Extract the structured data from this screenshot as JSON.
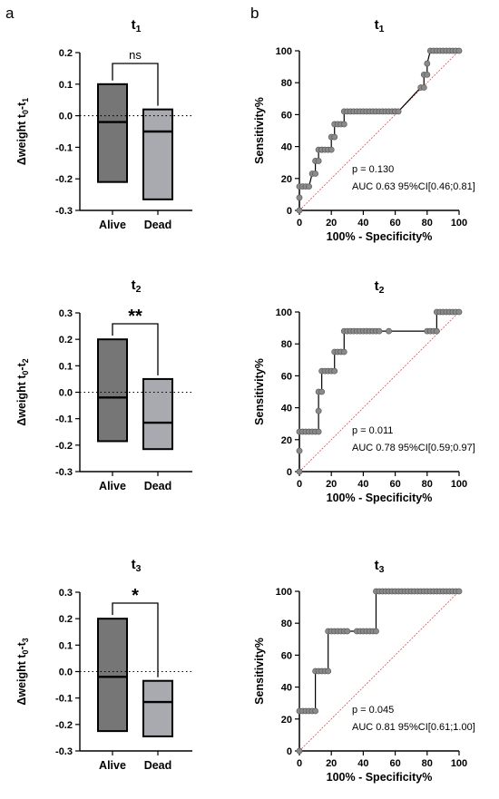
{
  "panel_labels": [
    "a",
    "b"
  ],
  "chart_data": [
    {
      "id": "box-t1",
      "type": "bar",
      "subtype": "floating-bar",
      "title": "t",
      "title_sub": "1",
      "ylabel": "Δweight t",
      "ylabel_sub0": "0",
      "ylabel_dash": "-t",
      "ylabel_sub1": "1",
      "ylim": [
        -0.3,
        0.2
      ],
      "yticks": [
        "0.2",
        "0.1",
        "0.0",
        "-0.1",
        "-0.2",
        "-0.3"
      ],
      "ytick_values": [
        0.2,
        0.1,
        0.0,
        -0.1,
        -0.2,
        -0.3
      ],
      "categories": [
        "Alive",
        "Dead"
      ],
      "min": [
        -0.21,
        -0.265
      ],
      "max": [
        0.1,
        0.02
      ],
      "median": [
        -0.02,
        -0.05
      ],
      "fills": [
        "#767676",
        "#a9a9b0"
      ],
      "reference_line": 0,
      "significance": "ns",
      "sig_style": "normal"
    },
    {
      "id": "box-t2",
      "type": "bar",
      "subtype": "floating-bar",
      "title": "t",
      "title_sub": "2",
      "ylabel": "Δweight t",
      "ylabel_sub0": "0",
      "ylabel_dash": "-t",
      "ylabel_sub1": "2",
      "ylim": [
        -0.3,
        0.3
      ],
      "yticks": [
        "0.3",
        "0.2",
        "0.1",
        "0.0",
        "-0.1",
        "-0.2",
        "-0.3"
      ],
      "ytick_values": [
        0.3,
        0.2,
        0.1,
        0.0,
        -0.1,
        -0.2,
        -0.3
      ],
      "categories": [
        "Alive",
        "Dead"
      ],
      "min": [
        -0.185,
        -0.215
      ],
      "max": [
        0.2,
        0.05
      ],
      "median": [
        -0.02,
        -0.115
      ],
      "fills": [
        "#767676",
        "#a9a9b0"
      ],
      "reference_line": 0,
      "significance": "**",
      "sig_style": "bold"
    },
    {
      "id": "box-t3",
      "type": "bar",
      "subtype": "floating-bar",
      "title": "t",
      "title_sub": "3",
      "ylabel": "Δweight t",
      "ylabel_sub0": "0",
      "ylabel_dash": "-t",
      "ylabel_sub1": "3",
      "ylim": [
        -0.3,
        0.3
      ],
      "yticks": [
        "0.3",
        "0.2",
        "0.1",
        "0.0",
        "-0.1",
        "-0.2",
        "-0.3"
      ],
      "ytick_values": [
        0.3,
        0.2,
        0.1,
        0.0,
        -0.1,
        -0.2,
        -0.3
      ],
      "categories": [
        "Alive",
        "Dead"
      ],
      "min": [
        -0.225,
        -0.245
      ],
      "max": [
        0.2,
        -0.035
      ],
      "median": [
        -0.02,
        -0.115
      ],
      "fills": [
        "#767676",
        "#a9a9b0"
      ],
      "reference_line": 0,
      "significance": "*",
      "sig_style": "bold"
    },
    {
      "id": "roc-t1",
      "type": "line",
      "title": "t",
      "title_sub": "1",
      "xlabel": "100% - Specificity%",
      "ylabel": "Sensitivity%",
      "xlim": [
        0,
        100
      ],
      "ylim": [
        0,
        100
      ],
      "xticks": [
        "0",
        "20",
        "40",
        "60",
        "80",
        "100"
      ],
      "yticks": [
        "0",
        "20",
        "40",
        "60",
        "80",
        "100"
      ],
      "diagonal_color": "#e06060",
      "p_text": "p = 0.130",
      "auc_text": "AUC 0.63 95%CI[0.46;0.81]",
      "x": [
        0,
        0,
        0,
        2,
        4,
        6,
        8,
        10,
        10,
        12,
        12,
        14,
        14,
        16,
        18,
        20,
        20,
        22,
        22,
        24,
        26,
        28,
        28,
        30,
        32,
        34,
        36,
        38,
        40,
        42,
        44,
        46,
        48,
        50,
        52,
        54,
        56,
        58,
        60,
        60,
        62,
        76,
        78,
        78,
        80,
        80,
        82,
        84,
        86,
        88,
        90,
        92,
        94,
        96,
        98,
        100
      ],
      "y": [
        0,
        8,
        15,
        15,
        15,
        15,
        23,
        23,
        31,
        31,
        38,
        38,
        38,
        38,
        38,
        38,
        46,
        46,
        54,
        54,
        54,
        54,
        62,
        62,
        62,
        62,
        62,
        62,
        62,
        62,
        62,
        62,
        62,
        62,
        62,
        62,
        62,
        62,
        62,
        62,
        62,
        77,
        77,
        85,
        85,
        92,
        100,
        100,
        100,
        100,
        100,
        100,
        100,
        100,
        100,
        100
      ]
    },
    {
      "id": "roc-t2",
      "type": "line",
      "title": "t",
      "title_sub": "2",
      "xlabel": "100% - Specificity%",
      "ylabel": "Sensitivity%",
      "xlim": [
        0,
        100
      ],
      "ylim": [
        0,
        100
      ],
      "xticks": [
        "0",
        "20",
        "40",
        "60",
        "80",
        "100"
      ],
      "yticks": [
        "0",
        "20",
        "40",
        "60",
        "80",
        "100"
      ],
      "diagonal_color": "#e06060",
      "p_text": "p  = 0.011",
      "auc_text": "AUC 0.78 95%CI[0.59;0.97]",
      "x": [
        0,
        0,
        0,
        2,
        4,
        6,
        8,
        10,
        12,
        12,
        12,
        14,
        14,
        16,
        18,
        20,
        22,
        22,
        24,
        26,
        28,
        28,
        30,
        32,
        34,
        36,
        38,
        40,
        42,
        44,
        46,
        48,
        50,
        56,
        80,
        82,
        84,
        86,
        86,
        88,
        90,
        92,
        94,
        96,
        98,
        100
      ],
      "y": [
        0,
        13,
        25,
        25,
        25,
        25,
        25,
        25,
        25,
        38,
        50,
        50,
        63,
        63,
        63,
        63,
        63,
        75,
        75,
        75,
        75,
        88,
        88,
        88,
        88,
        88,
        88,
        88,
        88,
        88,
        88,
        88,
        88,
        88,
        88,
        88,
        88,
        88,
        100,
        100,
        100,
        100,
        100,
        100,
        100,
        100
      ]
    },
    {
      "id": "roc-t3",
      "type": "line",
      "title": "t",
      "title_sub": "3",
      "xlabel": "100% - Specificity%",
      "ylabel": "Sensitivity%",
      "xlim": [
        0,
        100
      ],
      "ylim": [
        0,
        100
      ],
      "xticks": [
        "0",
        "20",
        "40",
        "60",
        "80",
        "100"
      ],
      "yticks": [
        "0",
        "20",
        "40",
        "60",
        "80",
        "100"
      ],
      "diagonal_color": "#e06060",
      "p_text": "p = 0.045",
      "auc_text": "AUC 0.81 95%CI[0.61;1.00]",
      "x": [
        0,
        0,
        2,
        4,
        6,
        8,
        10,
        10,
        12,
        14,
        16,
        18,
        18,
        20,
        22,
        24,
        26,
        28,
        30,
        36,
        38,
        40,
        42,
        44,
        46,
        48,
        48,
        50,
        52,
        54,
        56,
        58,
        60,
        62,
        64,
        66,
        68,
        70,
        72,
        74,
        76,
        78,
        80,
        82,
        84,
        86,
        88,
        90,
        92,
        94,
        96,
        98,
        100
      ],
      "y": [
        0,
        25,
        25,
        25,
        25,
        25,
        25,
        50,
        50,
        50,
        50,
        50,
        75,
        75,
        75,
        75,
        75,
        75,
        75,
        75,
        75,
        75,
        75,
        75,
        75,
        75,
        100,
        100,
        100,
        100,
        100,
        100,
        100,
        100,
        100,
        100,
        100,
        100,
        100,
        100,
        100,
        100,
        100,
        100,
        100,
        100,
        100,
        100,
        100,
        100,
        100,
        100,
        100
      ]
    }
  ]
}
